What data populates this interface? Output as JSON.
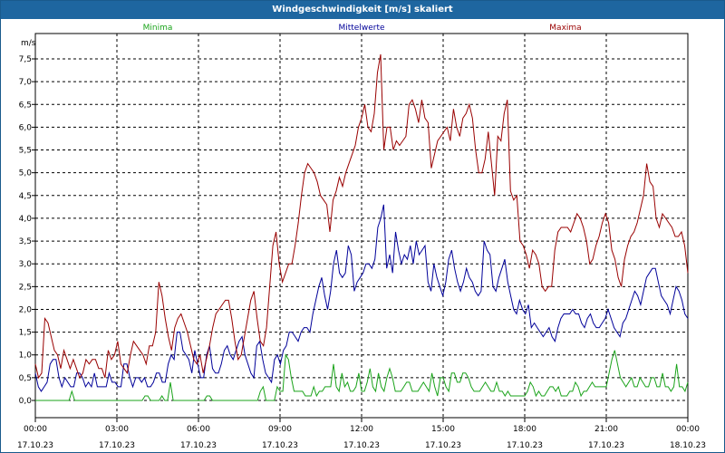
{
  "chart_data": {
    "type": "line",
    "title": "Windgeschwindigkeit [m/s] skaliert",
    "ylabel": "m/s",
    "ylim": [
      0,
      7.5
    ],
    "yticks": [
      "0,0",
      "0,5",
      "1,0",
      "1,5",
      "2,0",
      "2,5",
      "3,0",
      "3,5",
      "4,0",
      "4,5",
      "5,0",
      "5,5",
      "6,0",
      "6,5",
      "7,0",
      "7,5"
    ],
    "xlim": [
      0,
      24
    ],
    "xticks": [
      {
        "time": "00:00",
        "date": "17.10.23"
      },
      {
        "time": "03:00",
        "date": "17.10.23"
      },
      {
        "time": "06:00",
        "date": "17.10.23"
      },
      {
        "time": "09:00",
        "date": "17.10.23"
      },
      {
        "time": "12:00",
        "date": "17.10.23"
      },
      {
        "time": "15:00",
        "date": "17.10.23"
      },
      {
        "time": "18:00",
        "date": "17.10.23"
      },
      {
        "time": "21:00",
        "date": "17.10.23"
      },
      {
        "time": "00:00",
        "date": "18.10.23"
      }
    ],
    "grid": true,
    "series": [
      {
        "name": "Minima",
        "color": "#1aa31a",
        "values": [
          0,
          0,
          0,
          0,
          0,
          0,
          0,
          0,
          0,
          0,
          0,
          0,
          0,
          0.2,
          0,
          0,
          0,
          0,
          0,
          0,
          0,
          0,
          0,
          0,
          0,
          0,
          0,
          0,
          0,
          0,
          0,
          0,
          0,
          0,
          0,
          0,
          0,
          0,
          0,
          0.1,
          0.1,
          0,
          0,
          0,
          0,
          0.1,
          0,
          0,
          0.4,
          0,
          0,
          0,
          0,
          0,
          0,
          0,
          0,
          0,
          0,
          0,
          0,
          0.1,
          0.1,
          0,
          0,
          0,
          0,
          0,
          0,
          0,
          0,
          0,
          0,
          0,
          0,
          0,
          0,
          0,
          0,
          0,
          0.2,
          0.3,
          0,
          0,
          0,
          0,
          0.3,
          0.2,
          0.2,
          1.0,
          0.9,
          0.5,
          0.2,
          0.2,
          0.2,
          0.2,
          0.1,
          0.1,
          0.1,
          0.3,
          0.1,
          0.2,
          0.2,
          0.3,
          0.3,
          0.3,
          0.8,
          0.3,
          0.2,
          0.6,
          0.3,
          0.4,
          0.2,
          0.2,
          0.3,
          0.6,
          0.2,
          0.2,
          0.4,
          0.7,
          0.3,
          0.2,
          0.6,
          0.3,
          0.2,
          0.5,
          0.7,
          0.5,
          0.2,
          0.2,
          0.2,
          0.3,
          0.4,
          0.4,
          0.2,
          0.2,
          0.2,
          0.3,
          0.4,
          0.3,
          0.2,
          0.6,
          0.3,
          0.1,
          0.5,
          0.5,
          0.3,
          0.2,
          0.6,
          0.6,
          0.4,
          0.4,
          0.6,
          0.6,
          0.5,
          0.3,
          0.2,
          0.2,
          0.2,
          0.3,
          0.4,
          0.3,
          0.2,
          0.2,
          0.4,
          0.2,
          0.2,
          0.1,
          0.2,
          0.1,
          0.1,
          0.1,
          0.1,
          0.1,
          0.1,
          0.2,
          0.4,
          0.3,
          0.1,
          0.2,
          0.1,
          0.1,
          0.2,
          0.3,
          0.3,
          0.2,
          0.3,
          0.1,
          0.1,
          0.1,
          0.2,
          0.2,
          0.4,
          0.3,
          0.1,
          0.2,
          0.2,
          0.3,
          0.4,
          0.3,
          0.3,
          0.3,
          0.3,
          0.3,
          0.6,
          0.9,
          1.1,
          0.8,
          0.5,
          0.4,
          0.3,
          0.4,
          0.5,
          0.3,
          0.3,
          0.5,
          0.4,
          0.3,
          0.3,
          0.5,
          0.5,
          0.3,
          0.3,
          0.6,
          0.3,
          0.3,
          0.2,
          0.3,
          0.8,
          0.3,
          0.3,
          0.2,
          0.4
        ]
      },
      {
        "name": "Mittelwerte",
        "color": "#000099",
        "values": [
          0.6,
          0.3,
          0.2,
          0.3,
          0.4,
          0.8,
          0.9,
          0.9,
          0.5,
          0.3,
          0.5,
          0.4,
          0.3,
          0.3,
          0.6,
          0.6,
          0.5,
          0.3,
          0.4,
          0.3,
          0.6,
          0.3,
          0.3,
          0.3,
          0.3,
          0.6,
          0.4,
          0.4,
          0.3,
          0.3,
          0.8,
          0.8,
          0.5,
          0.3,
          0.5,
          0.5,
          0.4,
          0.5,
          0.3,
          0.3,
          0.4,
          0.6,
          0.6,
          0.4,
          0.4,
          0.8,
          1.0,
          0.9,
          1.5,
          1.5,
          1.1,
          1.0,
          0.9,
          0.6,
          1.1,
          0.8,
          0.5,
          0.5,
          1.0,
          1.2,
          0.7,
          0.6,
          0.6,
          0.8,
          1.1,
          1.2,
          1.0,
          0.9,
          1.1,
          1.3,
          1.4,
          1.0,
          0.8,
          0.6,
          0.5,
          1.2,
          1.3,
          0.9,
          0.6,
          0.5,
          0.4,
          0.9,
          1.0,
          0.8,
          1.1,
          1.2,
          1.5,
          1.5,
          1.4,
          1.3,
          1.5,
          1.6,
          1.6,
          1.5,
          1.9,
          2.2,
          2.5,
          2.7,
          2.3,
          2.0,
          2.4,
          3.0,
          3.3,
          2.8,
          2.7,
          2.8,
          3.4,
          3.2,
          2.4,
          2.6,
          2.7,
          2.8,
          3.0,
          3.0,
          2.9,
          3.1,
          3.8,
          4.0,
          4.3,
          2.9,
          3.2,
          2.8,
          3.7,
          3.3,
          3.0,
          3.2,
          3.1,
          3.4,
          3.0,
          3.5,
          3.2,
          3.3,
          3.4,
          2.6,
          2.4,
          3.0,
          2.7,
          2.5,
          2.3,
          2.6,
          3.1,
          3.3,
          2.9,
          2.6,
          2.4,
          2.6,
          2.9,
          2.7,
          2.6,
          2.4,
          2.3,
          2.4,
          3.5,
          3.3,
          3.2,
          2.5,
          2.4,
          2.7,
          2.9,
          3.1,
          2.6,
          2.3,
          2.0,
          1.9,
          2.2,
          2.0,
          1.9,
          2.1,
          1.6,
          1.7,
          1.6,
          1.5,
          1.4,
          1.5,
          1.6,
          1.4,
          1.3,
          1.6,
          1.8,
          1.9,
          1.9,
          1.9,
          2.0,
          1.9,
          1.9,
          1.7,
          1.6,
          1.8,
          1.9,
          1.7,
          1.6,
          1.6,
          1.7,
          1.8,
          2.0,
          1.8,
          1.6,
          1.5,
          1.4,
          1.7,
          1.8,
          2.0,
          2.2,
          2.4,
          2.3,
          2.1,
          2.4,
          2.7,
          2.8,
          2.9,
          2.9,
          2.6,
          2.3,
          2.2,
          2.1,
          1.9,
          2.2,
          2.5,
          2.4,
          2.2,
          1.9,
          1.8
        ]
      },
      {
        "name": "Maxima",
        "color": "#990000",
        "values": [
          0.8,
          0.5,
          0.6,
          1.8,
          1.7,
          1.4,
          1.1,
          1.0,
          0.7,
          1.1,
          0.9,
          0.7,
          0.9,
          0.7,
          0.5,
          0.6,
          0.9,
          0.8,
          0.9,
          0.9,
          0.7,
          0.7,
          0.5,
          1.1,
          0.9,
          1.0,
          1.3,
          0.8,
          0.7,
          0.6,
          1.0,
          1.3,
          1.2,
          1.1,
          1.0,
          0.8,
          1.2,
          1.2,
          1.5,
          2.6,
          2.3,
          1.8,
          1.4,
          1.1,
          1.6,
          1.8,
          1.9,
          1.7,
          1.5,
          1.2,
          0.9,
          0.8,
          1.0,
          0.6,
          0.9,
          1.2,
          1.6,
          1.9,
          2.0,
          2.1,
          2.2,
          2.2,
          1.8,
          1.3,
          0.9,
          1.0,
          1.4,
          1.8,
          2.2,
          2.4,
          1.8,
          1.3,
          1.2,
          1.6,
          2.5,
          3.4,
          3.7,
          3.0,
          2.6,
          2.8,
          3.0,
          3.0,
          3.4,
          3.9,
          4.5,
          5.0,
          5.2,
          5.1,
          5.0,
          4.8,
          4.5,
          4.4,
          4.3,
          3.7,
          4.4,
          4.6,
          4.9,
          4.7,
          5.0,
          5.2,
          5.4,
          5.6,
          6.0,
          6.2,
          6.5,
          6.0,
          5.9,
          6.3,
          7.2,
          7.6,
          5.5,
          6.0,
          6.0,
          5.5,
          5.7,
          5.6,
          5.7,
          5.8,
          6.5,
          6.6,
          6.4,
          6.1,
          6.6,
          6.2,
          6.1,
          5.1,
          5.4,
          5.7,
          5.8,
          5.9,
          6.0,
          5.7,
          6.4,
          6.0,
          5.8,
          6.2,
          6.3,
          6.5,
          6.2,
          5.5,
          5.0,
          5.0,
          5.3,
          5.9,
          5.2,
          4.5,
          5.8,
          5.7,
          6.3,
          6.6,
          4.6,
          4.4,
          4.5,
          3.5,
          3.4,
          3.2,
          2.9,
          3.3,
          3.2,
          3.0,
          2.5,
          2.4,
          2.5,
          2.5,
          3.3,
          3.7,
          3.8,
          3.8,
          3.8,
          3.7,
          3.9,
          4.1,
          4.0,
          3.8,
          3.5,
          3.0,
          3.1,
          3.4,
          3.6,
          3.9,
          4.1,
          3.9,
          3.3,
          3.1,
          2.7,
          2.5,
          3.1,
          3.4,
          3.6,
          3.7,
          3.9,
          4.2,
          4.5,
          5.2,
          4.8,
          4.7,
          4.0,
          3.8,
          4.1,
          4.0,
          3.9,
          3.8,
          3.6,
          3.6,
          3.7,
          3.4,
          2.8
        ]
      }
    ]
  }
}
